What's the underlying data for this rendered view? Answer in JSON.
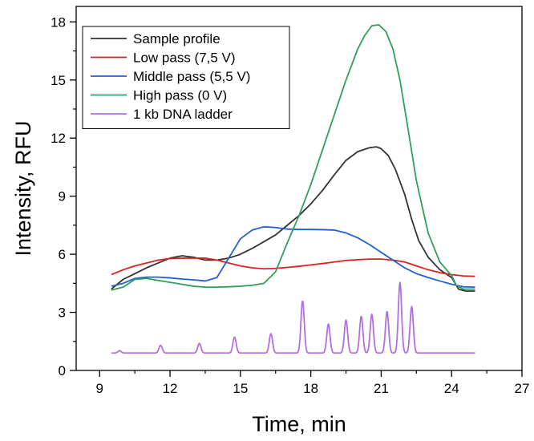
{
  "chart_data": {
    "type": "line",
    "title": "",
    "xlabel": "Time, min",
    "ylabel": "Intensity, RFU",
    "xlim": [
      8,
      27
    ],
    "ylim": [
      0,
      18.8
    ],
    "xticks": [
      9,
      12,
      15,
      18,
      21,
      24,
      27
    ],
    "yticks": [
      0,
      3,
      6,
      9,
      12,
      15,
      18
    ],
    "grid": false,
    "legend_position": "top-left",
    "series": [
      {
        "name": "Sample profile",
        "color": "#333333",
        "x": [
          9.5,
          10,
          10.5,
          11,
          11.5,
          12,
          12.5,
          13,
          13.5,
          14,
          14.5,
          15,
          15.5,
          16,
          16.5,
          17,
          17.5,
          18,
          18.5,
          19,
          19.5,
          20,
          20.5,
          20.8,
          21,
          21.3,
          21.6,
          22,
          22.3,
          22.6,
          23,
          23.5,
          24,
          24.3,
          24.6,
          25
        ],
        "y": [
          4.2,
          4.7,
          5.0,
          5.3,
          5.55,
          5.8,
          5.92,
          5.85,
          5.7,
          5.7,
          5.8,
          6.0,
          6.3,
          6.65,
          7.0,
          7.5,
          8.0,
          8.6,
          9.3,
          10.1,
          10.85,
          11.3,
          11.5,
          11.55,
          11.45,
          11.1,
          10.4,
          9.1,
          7.8,
          6.7,
          5.85,
          5.2,
          4.8,
          4.2,
          4.1,
          4.1
        ]
      },
      {
        "name": "Low pass (7,5 V)",
        "color": "#e02020",
        "x": [
          9.5,
          10,
          10.5,
          11,
          11.5,
          12,
          12.5,
          13,
          13.5,
          14,
          14.5,
          15,
          15.5,
          16,
          16.5,
          17,
          17.5,
          18,
          18.5,
          19,
          19.5,
          20,
          20.5,
          21,
          21.5,
          22,
          22.5,
          23,
          23.5,
          24,
          24.5,
          25
        ],
        "y": [
          4.95,
          5.2,
          5.4,
          5.55,
          5.7,
          5.78,
          5.8,
          5.8,
          5.8,
          5.7,
          5.55,
          5.4,
          5.3,
          5.25,
          5.27,
          5.32,
          5.38,
          5.45,
          5.52,
          5.6,
          5.68,
          5.72,
          5.75,
          5.75,
          5.7,
          5.6,
          5.4,
          5.2,
          5.05,
          4.95,
          4.88,
          4.86
        ]
      },
      {
        "name": "Middle pass (5,5 V)",
        "color": "#1f5fd0",
        "x": [
          9.5,
          10,
          10.5,
          11,
          11.5,
          12,
          12.5,
          13,
          13.5,
          14,
          14.5,
          15,
          15.5,
          16,
          16.5,
          17,
          17.5,
          18,
          18.5,
          19,
          19.5,
          20,
          20.5,
          21,
          21.5,
          22,
          22.5,
          23,
          23.5,
          24,
          24.5,
          25
        ],
        "y": [
          4.35,
          4.5,
          4.75,
          4.82,
          4.82,
          4.78,
          4.72,
          4.68,
          4.62,
          4.8,
          5.8,
          6.8,
          7.25,
          7.42,
          7.38,
          7.3,
          7.28,
          7.28,
          7.27,
          7.25,
          7.1,
          6.85,
          6.5,
          6.1,
          5.7,
          5.3,
          5.0,
          4.8,
          4.62,
          4.45,
          4.32,
          4.3
        ]
      },
      {
        "name": "High pass (0 V)",
        "color": "#2ea05a",
        "x": [
          9.5,
          10,
          10.5,
          11,
          11.5,
          12,
          12.5,
          13,
          13.5,
          14,
          14.5,
          15,
          15.5,
          16,
          16.5,
          17,
          17.5,
          18,
          18.5,
          19,
          19.5,
          20,
          20.3,
          20.6,
          20.9,
          21.2,
          21.5,
          21.8,
          22.1,
          22.5,
          23,
          23.5,
          24,
          24.2,
          24.5,
          25
        ],
        "y": [
          4.15,
          4.3,
          4.7,
          4.75,
          4.65,
          4.55,
          4.45,
          4.35,
          4.3,
          4.3,
          4.32,
          4.35,
          4.4,
          4.5,
          5.1,
          6.6,
          8.0,
          9.6,
          11.4,
          13.2,
          15.0,
          16.6,
          17.3,
          17.8,
          17.85,
          17.5,
          16.6,
          15.0,
          12.8,
          9.8,
          7.1,
          5.6,
          4.9,
          4.4,
          4.2,
          4.2
        ]
      },
      {
        "name": "1 kb DNA ladder",
        "color": "#b070e0",
        "baseline": 0.9,
        "ladder_peaks": [
          {
            "x": 9.85,
            "y": 1.02
          },
          {
            "x": 11.6,
            "y": 1.3
          },
          {
            "x": 13.25,
            "y": 1.4
          },
          {
            "x": 14.75,
            "y": 1.72
          },
          {
            "x": 16.3,
            "y": 1.9
          },
          {
            "x": 17.65,
            "y": 3.6
          },
          {
            "x": 18.75,
            "y": 2.4
          },
          {
            "x": 19.5,
            "y": 2.6
          },
          {
            "x": 20.15,
            "y": 2.8
          },
          {
            "x": 20.6,
            "y": 2.9
          },
          {
            "x": 21.25,
            "y": 3.05
          },
          {
            "x": 21.8,
            "y": 4.55
          },
          {
            "x": 22.3,
            "y": 3.3
          }
        ],
        "x_range": [
          9.5,
          25
        ]
      }
    ]
  }
}
